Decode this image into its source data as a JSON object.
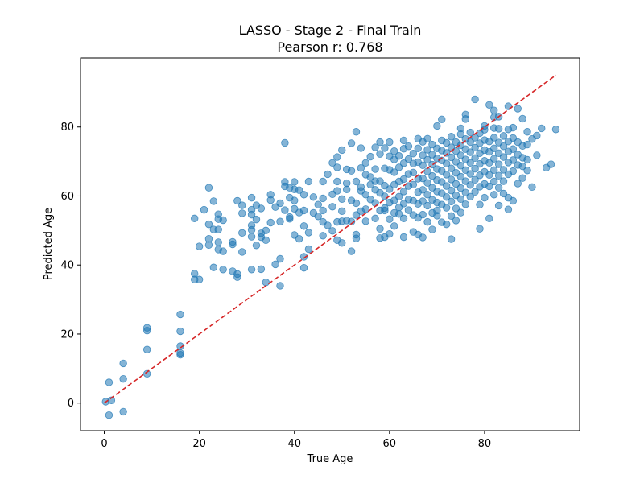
{
  "chart_data": {
    "type": "scatter",
    "title": "LASSO - Stage 2 - Final Train",
    "subtitle": "Pearson r: 0.768",
    "xlabel": "True Age",
    "ylabel": "Predicted Age",
    "xlim": [
      -5,
      100
    ],
    "ylim": [
      -8,
      100
    ],
    "xticks": [
      0,
      20,
      40,
      60,
      80
    ],
    "yticks": [
      0,
      20,
      40,
      60,
      80
    ],
    "grid": false,
    "point_color": "#1f77b4",
    "point_alpha": 0.55,
    "reference_line": {
      "from": [
        0,
        0
      ],
      "to": [
        95,
        95
      ],
      "color": "#d62728",
      "style": "dashed"
    },
    "points": [
      [
        0.3,
        0.4
      ],
      [
        1,
        6
      ],
      [
        1,
        -3.5
      ],
      [
        1.5,
        0.8
      ],
      [
        4,
        -2.5
      ],
      [
        4,
        7
      ],
      [
        4,
        11.5
      ],
      [
        9,
        8.5
      ],
      [
        9,
        15.5
      ],
      [
        9,
        21
      ],
      [
        9,
        21.8
      ],
      [
        16,
        14
      ],
      [
        16,
        14.5
      ],
      [
        16,
        16.5
      ],
      [
        16,
        20.8
      ],
      [
        16,
        25.7
      ],
      [
        19,
        35.8
      ],
      [
        19,
        37.5
      ],
      [
        19,
        53.5
      ],
      [
        20,
        35.8
      ],
      [
        20,
        45.4
      ],
      [
        21,
        56
      ],
      [
        22,
        45.8
      ],
      [
        22,
        47.6
      ],
      [
        22,
        51.8
      ],
      [
        22,
        62.4
      ],
      [
        23,
        39.3
      ],
      [
        23,
        50.3
      ],
      [
        23,
        58.5
      ],
      [
        24,
        44.5
      ],
      [
        24,
        46.6
      ],
      [
        24,
        50.3
      ],
      [
        24,
        53.3
      ],
      [
        24,
        54.7
      ],
      [
        25,
        44
      ],
      [
        25,
        53
      ],
      [
        25,
        38.7
      ],
      [
        27,
        46
      ],
      [
        27,
        46.7
      ],
      [
        27,
        38.2
      ],
      [
        28,
        36.5
      ],
      [
        28,
        58.6
      ],
      [
        28,
        37.4
      ],
      [
        29,
        49.3
      ],
      [
        29,
        55
      ],
      [
        29,
        57.3
      ],
      [
        29,
        43.8
      ],
      [
        31,
        38.7
      ],
      [
        31,
        48.2
      ],
      [
        31,
        50.2
      ],
      [
        31,
        51.5
      ],
      [
        31,
        54.6
      ],
      [
        31,
        56
      ],
      [
        31,
        59.5
      ],
      [
        32,
        45.7
      ],
      [
        32,
        53.2
      ],
      [
        32,
        57.3
      ],
      [
        33,
        48.1
      ],
      [
        33,
        49.2
      ],
      [
        33,
        38.8
      ],
      [
        33,
        56.4
      ],
      [
        34,
        47.2
      ],
      [
        34,
        50
      ],
      [
        34,
        35
      ],
      [
        35,
        52.3
      ],
      [
        35,
        58.8
      ],
      [
        35,
        60.4
      ],
      [
        36,
        56.8
      ],
      [
        36,
        40.2
      ],
      [
        37,
        41.8
      ],
      [
        37,
        34
      ],
      [
        37,
        52.6
      ],
      [
        37,
        57.9
      ],
      [
        38,
        75.4
      ],
      [
        38,
        62.8
      ],
      [
        38,
        64.1
      ],
      [
        38,
        55.9
      ],
      [
        39,
        53.4
      ],
      [
        39,
        53.9
      ],
      [
        39,
        62.4
      ],
      [
        39,
        59.5
      ],
      [
        40,
        48.7
      ],
      [
        40,
        58.7
      ],
      [
        40,
        61.9
      ],
      [
        40,
        64.1
      ],
      [
        40,
        56.3
      ],
      [
        41,
        47.6
      ],
      [
        41,
        55.2
      ],
      [
        41,
        61.7
      ],
      [
        42,
        39.2
      ],
      [
        42,
        42.4
      ],
      [
        42,
        51.3
      ],
      [
        42,
        55.8
      ],
      [
        42,
        60.4
      ],
      [
        43,
        49.4
      ],
      [
        43,
        44.6
      ],
      [
        43,
        64.2
      ],
      [
        44,
        55.1
      ],
      [
        44,
        59.7
      ],
      [
        45,
        54.1
      ],
      [
        45,
        57.5
      ],
      [
        46,
        48.5
      ],
      [
        46,
        52.5
      ],
      [
        46,
        55.8
      ],
      [
        46,
        59.3
      ],
      [
        46,
        64.2
      ],
      [
        47,
        51.5
      ],
      [
        47,
        66.3
      ],
      [
        48,
        49.9
      ],
      [
        48,
        60.5
      ],
      [
        48,
        69.6
      ],
      [
        48,
        56.9
      ],
      [
        49,
        47.2
      ],
      [
        49,
        52.5
      ],
      [
        49,
        61.5
      ],
      [
        49,
        64.2
      ],
      [
        49,
        68.3
      ],
      [
        49,
        71.3
      ],
      [
        50,
        52.7
      ],
      [
        50,
        46.4
      ],
      [
        50,
        59.1
      ],
      [
        50,
        55.6
      ],
      [
        50,
        73.3
      ],
      [
        51,
        52.9
      ],
      [
        51,
        61.9
      ],
      [
        51,
        67.7
      ],
      [
        51,
        63.7
      ],
      [
        52,
        44
      ],
      [
        52,
        52.6
      ],
      [
        52,
        58.7
      ],
      [
        52,
        67.3
      ],
      [
        52,
        75.3
      ],
      [
        53,
        54.5
      ],
      [
        53,
        48.8
      ],
      [
        53,
        47.7
      ],
      [
        53,
        57.9
      ],
      [
        53,
        64.2
      ],
      [
        53,
        78.6
      ],
      [
        54,
        55.6
      ],
      [
        54,
        61.5
      ],
      [
        54,
        62.6
      ],
      [
        54,
        68.1
      ],
      [
        54,
        73.9
      ],
      [
        55,
        52.7
      ],
      [
        55,
        56.2
      ],
      [
        55,
        60.4
      ],
      [
        55,
        66.2
      ],
      [
        55,
        69.6
      ],
      [
        56,
        59
      ],
      [
        56,
        63.3
      ],
      [
        56,
        71.4
      ],
      [
        56,
        65.5
      ],
      [
        57,
        53.5
      ],
      [
        57,
        58
      ],
      [
        57,
        61.8
      ],
      [
        57,
        67.8
      ],
      [
        57,
        74.1
      ],
      [
        57,
        64.3
      ],
      [
        58,
        47.8
      ],
      [
        58,
        50.5
      ],
      [
        58,
        55.8
      ],
      [
        58,
        60.9
      ],
      [
        58,
        64.3
      ],
      [
        58,
        72.2
      ],
      [
        58,
        75.6
      ],
      [
        59,
        48.1
      ],
      [
        59,
        55.8
      ],
      [
        59,
        59.9
      ],
      [
        59,
        63
      ],
      [
        59,
        68
      ],
      [
        59,
        73.9
      ],
      [
        59,
        56.5
      ],
      [
        60,
        49
      ],
      [
        60,
        53.3
      ],
      [
        60,
        58.1
      ],
      [
        60,
        62
      ],
      [
        60,
        67.6
      ],
      [
        60,
        71.5
      ],
      [
        60,
        75.6
      ],
      [
        61,
        51.3
      ],
      [
        61,
        55.1
      ],
      [
        61,
        58.7
      ],
      [
        61,
        63.3
      ],
      [
        61,
        66.9
      ],
      [
        61,
        70.6
      ],
      [
        61,
        73
      ],
      [
        62,
        54.8
      ],
      [
        62,
        59.8
      ],
      [
        62,
        64.2
      ],
      [
        62,
        68.3
      ],
      [
        62,
        71.6
      ],
      [
        62,
        56.7
      ],
      [
        63,
        48.1
      ],
      [
        63,
        53.5
      ],
      [
        63,
        57.8
      ],
      [
        63,
        61.3
      ],
      [
        63,
        64.9
      ],
      [
        63,
        69.5
      ],
      [
        63,
        73.7
      ],
      [
        63,
        76.1
      ],
      [
        64,
        55.9
      ],
      [
        64,
        59
      ],
      [
        64,
        62.9
      ],
      [
        64,
        66.4
      ],
      [
        64,
        70.7
      ],
      [
        64,
        74.4
      ],
      [
        65,
        49.6
      ],
      [
        65,
        54.5
      ],
      [
        65,
        58.6
      ],
      [
        65,
        63.3
      ],
      [
        65,
        66.8
      ],
      [
        65,
        69.4
      ],
      [
        65,
        72.3
      ],
      [
        66,
        48.8
      ],
      [
        66,
        53.7
      ],
      [
        66,
        57.7
      ],
      [
        66,
        61.1
      ],
      [
        66,
        65
      ],
      [
        66,
        69.8
      ],
      [
        66,
        73.8
      ],
      [
        66,
        76.6
      ],
      [
        67,
        48
      ],
      [
        67,
        54.6
      ],
      [
        67,
        58.5
      ],
      [
        67,
        61.8
      ],
      [
        67,
        65.1
      ],
      [
        67,
        68.9
      ],
      [
        67,
        71.8
      ],
      [
        67,
        75.7
      ],
      [
        68,
        52.5
      ],
      [
        68,
        57.2
      ],
      [
        68,
        60.4
      ],
      [
        68,
        63.8
      ],
      [
        68,
        67.1
      ],
      [
        68,
        70.5
      ],
      [
        68,
        73.4
      ],
      [
        68,
        76.6
      ],
      [
        69,
        50.3
      ],
      [
        69,
        55.1
      ],
      [
        69,
        58.9
      ],
      [
        69,
        62.4
      ],
      [
        69,
        65.8
      ],
      [
        69,
        69.1
      ],
      [
        69,
        72
      ],
      [
        69,
        74.9
      ],
      [
        70,
        54.3
      ],
      [
        70,
        58.1
      ],
      [
        70,
        61.3
      ],
      [
        70,
        64.6
      ],
      [
        70,
        67.8
      ],
      [
        70,
        70.9
      ],
      [
        70,
        73.8
      ],
      [
        70,
        80.3
      ],
      [
        70,
        55.8
      ],
      [
        71,
        52.4
      ],
      [
        71,
        57.5
      ],
      [
        71,
        60.8
      ],
      [
        71,
        64.1
      ],
      [
        71,
        67.3
      ],
      [
        71,
        70.3
      ],
      [
        71,
        73.2
      ],
      [
        71,
        76.1
      ],
      [
        71,
        82.2
      ],
      [
        72,
        51.8
      ],
      [
        72,
        56.6
      ],
      [
        72,
        59.7
      ],
      [
        72,
        62.9
      ],
      [
        72,
        66.2
      ],
      [
        72,
        69.4
      ],
      [
        72,
        72.5
      ],
      [
        72,
        75.4
      ],
      [
        73,
        47.5
      ],
      [
        73,
        54.2
      ],
      [
        73,
        58.4
      ],
      [
        73,
        61.6
      ],
      [
        73,
        64.8
      ],
      [
        73,
        68
      ],
      [
        73,
        71.2
      ],
      [
        73,
        74.1
      ],
      [
        73,
        77.2
      ],
      [
        74,
        52.9
      ],
      [
        74,
        56.4
      ],
      [
        74,
        60.2
      ],
      [
        74,
        63.5
      ],
      [
        74,
        66.7
      ],
      [
        74,
        69.9
      ],
      [
        74,
        73
      ],
      [
        74,
        75.6
      ],
      [
        75,
        55.2
      ],
      [
        75,
        59.1
      ],
      [
        75,
        62.3
      ],
      [
        75,
        65.6
      ],
      [
        75,
        68.8
      ],
      [
        75,
        71.8
      ],
      [
        75,
        74.7
      ],
      [
        75,
        77.9
      ],
      [
        75,
        79.6
      ],
      [
        76,
        57.6
      ],
      [
        76,
        61
      ],
      [
        76,
        64.3
      ],
      [
        76,
        67.5
      ],
      [
        76,
        70.6
      ],
      [
        76,
        73.6
      ],
      [
        76,
        76.5
      ],
      [
        76,
        83.6
      ],
      [
        76,
        82.3
      ],
      [
        77,
        59.8
      ],
      [
        77,
        63.2
      ],
      [
        77,
        66.4
      ],
      [
        77,
        69.6
      ],
      [
        77,
        72.7
      ],
      [
        77,
        75.6
      ],
      [
        77,
        78.4
      ],
      [
        78,
        61.2
      ],
      [
        78,
        64.7
      ],
      [
        78,
        67.9
      ],
      [
        78,
        71
      ],
      [
        78,
        74
      ],
      [
        78,
        76.9
      ],
      [
        78,
        88
      ],
      [
        79,
        50.5
      ],
      [
        79,
        57.5
      ],
      [
        79,
        62.7
      ],
      [
        79,
        66
      ],
      [
        79,
        69.3
      ],
      [
        79,
        72.4
      ],
      [
        79,
        75.3
      ],
      [
        79,
        78.2
      ],
      [
        80,
        59.5
      ],
      [
        80,
        63.5
      ],
      [
        80,
        67
      ],
      [
        80,
        70.2
      ],
      [
        80,
        73.3
      ],
      [
        80,
        76.2
      ],
      [
        80,
        79.2
      ],
      [
        80,
        80.3
      ],
      [
        81,
        53.5
      ],
      [
        81,
        62.8
      ],
      [
        81,
        66.1
      ],
      [
        81,
        69.6
      ],
      [
        81,
        72.8
      ],
      [
        81,
        75.8
      ],
      [
        81,
        86.4
      ],
      [
        82,
        60.4
      ],
      [
        82,
        64.2
      ],
      [
        82,
        67.5
      ],
      [
        82,
        70.8
      ],
      [
        82,
        73.8
      ],
      [
        82,
        76.9
      ],
      [
        82,
        79.7
      ],
      [
        82,
        82.8
      ],
      [
        82,
        84.8
      ],
      [
        83,
        57.2
      ],
      [
        83,
        62.4
      ],
      [
        83,
        65.9
      ],
      [
        83,
        69.2
      ],
      [
        83,
        72.4
      ],
      [
        83,
        75.5
      ],
      [
        83,
        79.5
      ],
      [
        83,
        83
      ],
      [
        84,
        60.7
      ],
      [
        84,
        64.3
      ],
      [
        84,
        67.6
      ],
      [
        84,
        71.3
      ],
      [
        84,
        74.4
      ],
      [
        84,
        77.4
      ],
      [
        85,
        56.1
      ],
      [
        85,
        59.5
      ],
      [
        85,
        66.3
      ],
      [
        85,
        69.7
      ],
      [
        85,
        72.9
      ],
      [
        85,
        75.8
      ],
      [
        85,
        79.3
      ],
      [
        85,
        86
      ],
      [
        86,
        58.6
      ],
      [
        86,
        67.2
      ],
      [
        86,
        70.4
      ],
      [
        86,
        73.6
      ],
      [
        86,
        76.8
      ],
      [
        86,
        79.8
      ],
      [
        87,
        63.6
      ],
      [
        87,
        69
      ],
      [
        87,
        72
      ],
      [
        87,
        75.6
      ],
      [
        87,
        85.3
      ],
      [
        88,
        65.2
      ],
      [
        88,
        68.6
      ],
      [
        88,
        71.1
      ],
      [
        88,
        74.5
      ],
      [
        88,
        82.4
      ],
      [
        89,
        67.4
      ],
      [
        89,
        70.5
      ],
      [
        89,
        74.9
      ],
      [
        89,
        78.6
      ],
      [
        90,
        62.6
      ],
      [
        90,
        76.5
      ],
      [
        91,
        71.8
      ],
      [
        91,
        77.5
      ],
      [
        92,
        79.6
      ],
      [
        93,
        68.2
      ],
      [
        94,
        69.2
      ],
      [
        95,
        79.3
      ]
    ]
  }
}
